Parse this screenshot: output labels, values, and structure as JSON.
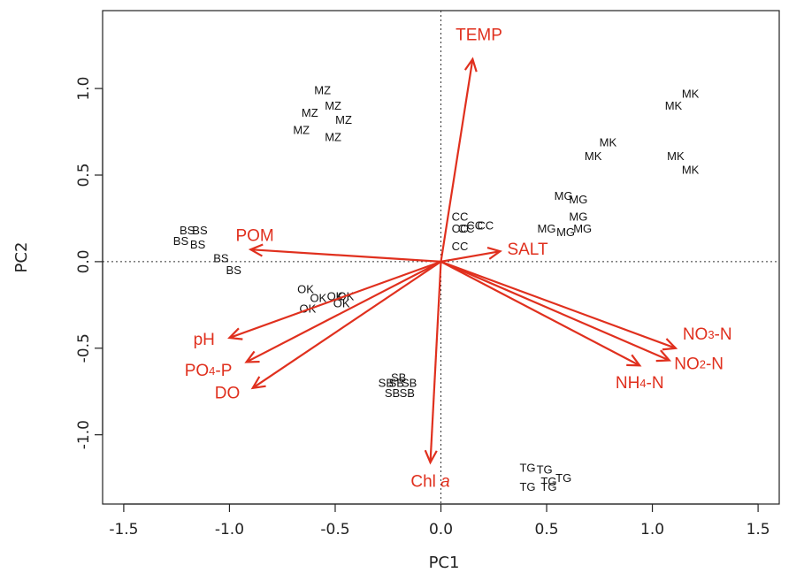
{
  "chart_data": {
    "type": "scatter",
    "subtype": "pca-biplot",
    "title": "",
    "xlabel": "PC1",
    "ylabel": "PC2",
    "xlim": [
      -1.6,
      1.6
    ],
    "ylim": [
      -1.4,
      1.45
    ],
    "xticks": [
      -1.5,
      -1.0,
      -0.5,
      0.0,
      0.5,
      1.0,
      1.5
    ],
    "xtick_labels": [
      "-1.5",
      "-1.0",
      "-0.5",
      "0.0",
      "0.5",
      "1.0",
      "1.5"
    ],
    "yticks": [
      -1.0,
      -0.5,
      0.0,
      0.5,
      1.0
    ],
    "ytick_labels": [
      "-1.0",
      "-0.5",
      "0.0",
      "0.5",
      "1.0"
    ],
    "reference_lines": {
      "x": 0,
      "y": 0,
      "style": "dotted"
    },
    "grid": false,
    "colors": {
      "points": "#111111",
      "vectors": "#e0301e",
      "axes": "#222222"
    },
    "sites": [
      {
        "label": "MZ",
        "x": -0.56,
        "y": 0.99
      },
      {
        "label": "MZ",
        "x": -0.51,
        "y": 0.9
      },
      {
        "label": "MZ",
        "x": -0.62,
        "y": 0.86
      },
      {
        "label": "MZ",
        "x": -0.46,
        "y": 0.82
      },
      {
        "label": "MZ",
        "x": -0.66,
        "y": 0.76
      },
      {
        "label": "MZ",
        "x": -0.51,
        "y": 0.72
      },
      {
        "label": "MK",
        "x": 1.18,
        "y": 0.97
      },
      {
        "label": "MK",
        "x": 1.1,
        "y": 0.9
      },
      {
        "label": "MK",
        "x": 0.79,
        "y": 0.69
      },
      {
        "label": "MK",
        "x": 0.72,
        "y": 0.61
      },
      {
        "label": "MK",
        "x": 1.11,
        "y": 0.61
      },
      {
        "label": "MK",
        "x": 1.18,
        "y": 0.53
      },
      {
        "label": "MG",
        "x": 0.58,
        "y": 0.38
      },
      {
        "label": "MG",
        "x": 0.65,
        "y": 0.36
      },
      {
        "label": "MG",
        "x": 0.65,
        "y": 0.26
      },
      {
        "label": "MG",
        "x": 0.5,
        "y": 0.19
      },
      {
        "label": "MG",
        "x": 0.59,
        "y": 0.17
      },
      {
        "label": "MG",
        "x": 0.67,
        "y": 0.19
      },
      {
        "label": "CC",
        "x": 0.09,
        "y": 0.26
      },
      {
        "label": "CC",
        "x": 0.09,
        "y": 0.19
      },
      {
        "label": "CC",
        "x": 0.12,
        "y": 0.19
      },
      {
        "label": "CC",
        "x": 0.16,
        "y": 0.21
      },
      {
        "label": "CC",
        "x": 0.21,
        "y": 0.21
      },
      {
        "label": "CC",
        "x": 0.09,
        "y": 0.09
      },
      {
        "label": "BS",
        "x": -1.2,
        "y": 0.18
      },
      {
        "label": "BS",
        "x": -1.14,
        "y": 0.18
      },
      {
        "label": "BS",
        "x": -1.23,
        "y": 0.12
      },
      {
        "label": "BS",
        "x": -1.15,
        "y": 0.1
      },
      {
        "label": "BS",
        "x": -1.04,
        "y": 0.02
      },
      {
        "label": "BS",
        "x": -0.98,
        "y": -0.05
      },
      {
        "label": "OK",
        "x": -0.64,
        "y": -0.16
      },
      {
        "label": "OK",
        "x": -0.58,
        "y": -0.21
      },
      {
        "label": "OK",
        "x": -0.5,
        "y": -0.2
      },
      {
        "label": "OK",
        "x": -0.45,
        "y": -0.2
      },
      {
        "label": "OK",
        "x": -0.47,
        "y": -0.24
      },
      {
        "label": "OK",
        "x": -0.63,
        "y": -0.27
      },
      {
        "label": "SB",
        "x": -0.2,
        "y": -0.67
      },
      {
        "label": "SB",
        "x": -0.26,
        "y": -0.7
      },
      {
        "label": "SB",
        "x": -0.21,
        "y": -0.7
      },
      {
        "label": "SB",
        "x": -0.15,
        "y": -0.7
      },
      {
        "label": "SB",
        "x": -0.23,
        "y": -0.76
      },
      {
        "label": "SB",
        "x": -0.16,
        "y": -0.76
      },
      {
        "label": "TG",
        "x": 0.41,
        "y": -1.19
      },
      {
        "label": "TG",
        "x": 0.49,
        "y": -1.2
      },
      {
        "label": "TG",
        "x": 0.58,
        "y": -1.25
      },
      {
        "label": "TG",
        "x": 0.51,
        "y": -1.27
      },
      {
        "label": "TG",
        "x": 0.41,
        "y": -1.3
      },
      {
        "label": "TG",
        "x": 0.51,
        "y": -1.3
      }
    ],
    "vectors": [
      {
        "label": "TEMP",
        "sub": "",
        "suffix": "",
        "x": 0.15,
        "y": 1.17,
        "lx": 0.18,
        "ly": 1.31
      },
      {
        "label": "SALT",
        "sub": "",
        "suffix": "",
        "x": 0.28,
        "y": 0.06,
        "lx": 0.41,
        "ly": 0.07
      },
      {
        "label": "POM",
        "sub": "",
        "suffix": "",
        "x": -0.9,
        "y": 0.07,
        "lx": -0.88,
        "ly": 0.15
      },
      {
        "label": "pH",
        "sub": "",
        "suffix": "",
        "x": -1.0,
        "y": -0.44,
        "lx": -1.12,
        "ly": -0.45
      },
      {
        "label": "PO",
        "sub": "4",
        "suffix": "-P",
        "x": -0.92,
        "y": -0.58,
        "lx": -1.1,
        "ly": -0.63
      },
      {
        "label": "DO",
        "sub": "",
        "suffix": "",
        "x": -0.89,
        "y": -0.73,
        "lx": -1.01,
        "ly": -0.76
      },
      {
        "label": "NO",
        "sub": "3",
        "suffix": "-N",
        "x": 1.11,
        "y": -0.5,
        "lx": 1.26,
        "ly": -0.42
      },
      {
        "label": "NO",
        "sub": "2",
        "suffix": "-N",
        "x": 1.08,
        "y": -0.57,
        "lx": 1.22,
        "ly": -0.59
      },
      {
        "label": "NH",
        "sub": "4",
        "suffix": "-N",
        "x": 0.94,
        "y": -0.6,
        "lx": 0.94,
        "ly": -0.7
      },
      {
        "label": "Chl ",
        "sub": "",
        "suffix": "",
        "italic": "a",
        "x": -0.05,
        "y": -1.16,
        "lx": -0.05,
        "ly": -1.27
      }
    ]
  }
}
